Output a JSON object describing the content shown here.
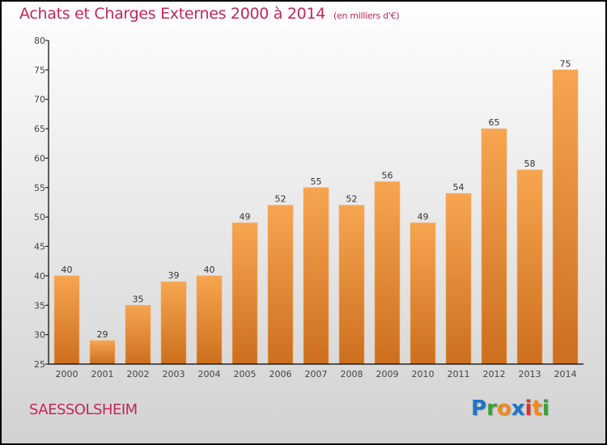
{
  "header": {
    "title": "Achats et Charges Externes 2000 à 2014",
    "unit": "(en milliers d'€)"
  },
  "footer": {
    "commune": "SAESSOLSHEIM",
    "logo_letters": [
      {
        "char": "P",
        "color": "#1f74c8"
      },
      {
        "char": "r",
        "color": "#3aa03a"
      },
      {
        "char": "o",
        "color": "#f08a1c"
      },
      {
        "char": "x",
        "color": "#1f74c8"
      },
      {
        "char": "i",
        "color": "#e0312b"
      },
      {
        "char": "t",
        "color": "#f08a1c"
      },
      {
        "char": "i",
        "color": "#3aa03a"
      }
    ]
  },
  "colors": {
    "title": "#c2285a",
    "bar_top": "#f7a550",
    "bar_bottom": "#cc6f1e",
    "axis": "#000000"
  },
  "chart_data": {
    "type": "bar",
    "title": "Achats et Charges Externes 2000 à 2014",
    "subtitle": "(en milliers d'€)",
    "xlabel": "",
    "ylabel": "",
    "categories": [
      "2000",
      "2001",
      "2002",
      "2003",
      "2004",
      "2005",
      "2006",
      "2007",
      "2008",
      "2009",
      "2010",
      "2011",
      "2012",
      "2013",
      "2014"
    ],
    "values": [
      40,
      29,
      35,
      39,
      40,
      49,
      52,
      55,
      52,
      56,
      49,
      54,
      65,
      58,
      75
    ],
    "ylim": [
      25,
      80
    ],
    "yticks": [
      25,
      30,
      35,
      40,
      45,
      50,
      55,
      60,
      65,
      70,
      75,
      80
    ],
    "grid": false,
    "legend": "none",
    "data_labels": true
  }
}
